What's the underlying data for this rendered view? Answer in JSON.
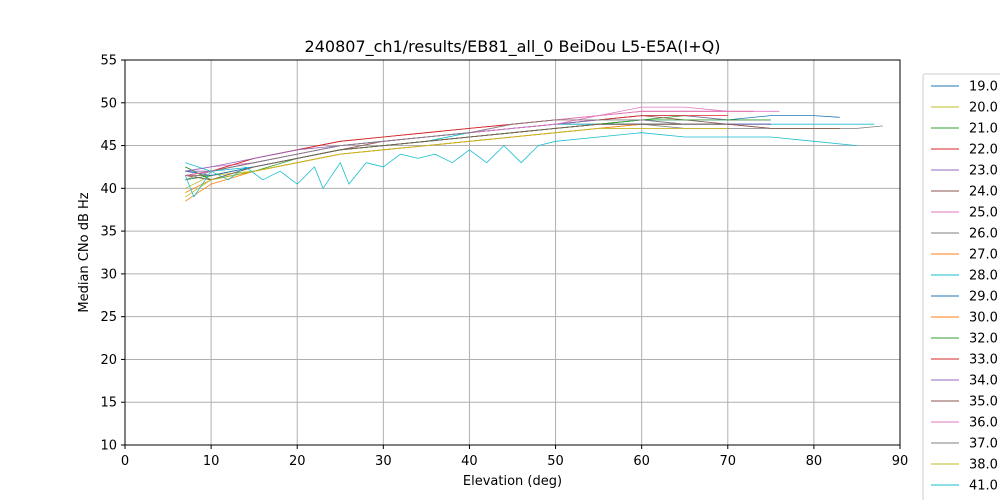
{
  "chart_data": {
    "type": "line",
    "title": "240807_ch1/results/EB81_all_0 BeiDou L5-E5A(I+Q)",
    "xlabel": "Elevation (deg)",
    "ylabel": "Median CNo dB Hz",
    "xlim": [
      0,
      90
    ],
    "ylim": [
      10,
      55
    ],
    "xticks": [
      0,
      10,
      20,
      30,
      40,
      50,
      60,
      70,
      80,
      90
    ],
    "yticks": [
      10,
      15,
      20,
      25,
      30,
      35,
      40,
      45,
      50,
      55
    ],
    "grid": true,
    "legend_position": "right, outside plot",
    "series": [
      {
        "name": "19.0",
        "color": "#1f77b4",
        "x": [
          7,
          10,
          15,
          20,
          25,
          30,
          35,
          40,
          45,
          50,
          55,
          60,
          65,
          70,
          75,
          80,
          83
        ],
        "y": [
          42.5,
          41.0,
          42.5,
          43.5,
          44.5,
          45.0,
          45.5,
          46.0,
          46.5,
          47.0,
          47.5,
          48.0,
          48.0,
          48.0,
          48.5,
          48.5,
          48.3
        ]
      },
      {
        "name": "20.0",
        "color": "#bcbd22",
        "x": [
          7,
          10,
          15,
          20,
          25,
          30,
          35,
          40,
          45,
          50,
          55,
          60,
          65,
          70,
          75
        ],
        "y": [
          40.0,
          41.5,
          42.0,
          43.0,
          44.0,
          44.5,
          45.0,
          45.5,
          46.0,
          46.5,
          47.0,
          47.5,
          47.5,
          47.5,
          47.5
        ]
      },
      {
        "name": "21.0",
        "color": "#2ca02c",
        "x": [
          7,
          10,
          15,
          20,
          25,
          30,
          35,
          40,
          45,
          50,
          55,
          60,
          65,
          70,
          75
        ],
        "y": [
          41.0,
          41.5,
          42.5,
          43.5,
          44.5,
          45.0,
          45.5,
          46.0,
          46.5,
          47.0,
          47.5,
          48.0,
          48.5,
          48.0,
          48.0
        ]
      },
      {
        "name": "22.0",
        "color": "#d62728",
        "x": [
          7,
          10,
          15,
          20,
          25,
          30,
          35,
          40,
          45,
          50,
          55,
          60,
          65,
          70,
          73
        ],
        "y": [
          41.5,
          42.0,
          43.5,
          44.5,
          45.5,
          46.0,
          46.5,
          47.0,
          47.5,
          48.0,
          48.5,
          49.0,
          49.0,
          49.0,
          49.0
        ]
      },
      {
        "name": "23.0",
        "color": "#9467bd",
        "x": [
          7,
          10,
          15,
          20,
          25,
          30,
          35,
          40,
          45,
          50,
          55,
          60,
          65,
          70,
          75
        ],
        "y": [
          42.0,
          42.0,
          43.0,
          44.0,
          45.0,
          45.5,
          46.0,
          46.5,
          47.0,
          47.5,
          48.0,
          48.5,
          48.5,
          48.0,
          48.0
        ]
      },
      {
        "name": "24.0",
        "color": "#8c564b",
        "x": [
          7,
          10,
          15,
          20,
          25,
          30,
          35,
          40,
          45,
          50,
          55,
          60,
          65,
          70,
          75,
          80,
          83
        ],
        "y": [
          41.5,
          41.5,
          42.5,
          43.5,
          44.5,
          45.5,
          46.0,
          46.5,
          47.0,
          47.5,
          48.0,
          48.5,
          48.0,
          47.5,
          47.0,
          47.0,
          47.0
        ]
      },
      {
        "name": "25.0",
        "color": "#e377c2",
        "x": [
          7,
          10,
          15,
          20,
          25,
          30,
          35,
          40,
          45,
          50,
          55,
          60,
          65,
          70,
          76
        ],
        "y": [
          42.0,
          42.5,
          43.0,
          44.0,
          45.0,
          45.5,
          46.0,
          46.5,
          47.5,
          48.0,
          48.5,
          49.5,
          49.5,
          49.0,
          49.0
        ]
      },
      {
        "name": "26.0",
        "color": "#7f7f7f",
        "x": [
          7,
          10,
          15,
          20,
          25,
          30,
          35,
          40,
          45,
          50,
          55,
          60,
          65,
          70,
          75,
          80,
          85,
          88
        ],
        "y": [
          41.5,
          42.0,
          43.0,
          44.0,
          45.0,
          45.5,
          46.0,
          46.5,
          47.0,
          47.5,
          47.5,
          47.5,
          47.0,
          47.0,
          47.0,
          47.0,
          47.0,
          47.3
        ]
      },
      {
        "name": "27.0",
        "color": "#ff7f0e",
        "x": [
          7,
          10,
          15,
          20,
          25,
          30,
          35,
          40,
          45,
          50,
          55,
          60,
          65,
          70
        ],
        "y": [
          39.5,
          41.0,
          42.0,
          43.0,
          44.0,
          44.5,
          45.0,
          45.5,
          46.0,
          46.5,
          47.0,
          47.5,
          47.5,
          47.5
        ]
      },
      {
        "name": "28.0",
        "color": "#17becf",
        "x": [
          7,
          10,
          15,
          20,
          25,
          30,
          35,
          40,
          45,
          50,
          55,
          60,
          65,
          70,
          75,
          80,
          85,
          87
        ],
        "y": [
          43.0,
          42.0,
          42.5,
          43.5,
          44.5,
          45.0,
          45.5,
          46.5,
          47.0,
          47.5,
          47.5,
          47.5,
          47.5,
          47.5,
          47.5,
          47.5,
          47.5,
          47.5
        ]
      },
      {
        "name": "29.0",
        "color": "#1f77b4",
        "x": [
          7,
          10,
          15,
          20,
          25,
          30,
          35,
          40,
          45,
          50,
          55,
          60,
          65,
          70,
          75
        ],
        "y": [
          42.0,
          41.5,
          42.5,
          43.5,
          44.5,
          45.0,
          45.5,
          46.0,
          46.5,
          47.0,
          47.5,
          47.5,
          47.5,
          47.5,
          47.5
        ]
      },
      {
        "name": "30.0",
        "color": "#ff7f0e",
        "x": [
          7,
          10,
          15,
          20,
          25,
          30,
          35,
          40,
          45,
          50,
          55,
          60,
          65,
          70
        ],
        "y": [
          38.5,
          40.5,
          42.0,
          43.0,
          44.0,
          44.5,
          45.0,
          45.5,
          46.0,
          46.5,
          47.0,
          47.0,
          47.0,
          47.0
        ]
      },
      {
        "name": "32.0",
        "color": "#2ca02c",
        "x": [
          7,
          10,
          15,
          20,
          25,
          30,
          35,
          40,
          45,
          50,
          55,
          60,
          65,
          70,
          75
        ],
        "y": [
          42.5,
          41.0,
          42.0,
          43.5,
          44.5,
          45.0,
          45.5,
          46.0,
          46.5,
          47.0,
          47.5,
          48.0,
          48.0,
          48.0,
          48.0
        ]
      },
      {
        "name": "33.0",
        "color": "#d62728",
        "x": [
          7,
          10,
          15,
          20,
          25,
          30,
          35,
          40,
          45,
          50,
          55,
          60,
          65,
          70
        ],
        "y": [
          41.5,
          42.0,
          43.5,
          44.5,
          45.5,
          46.0,
          46.5,
          47.0,
          47.5,
          48.0,
          48.0,
          48.5,
          48.5,
          48.5
        ]
      },
      {
        "name": "34.0",
        "color": "#9467bd",
        "x": [
          7,
          10,
          15,
          20,
          25,
          30,
          35,
          40,
          45,
          50,
          55,
          60,
          65,
          70,
          75
        ],
        "y": [
          42.0,
          42.5,
          43.5,
          44.5,
          45.0,
          45.5,
          46.0,
          46.5,
          47.0,
          47.5,
          48.0,
          48.0,
          47.5,
          47.5,
          47.5
        ]
      },
      {
        "name": "35.0",
        "color": "#8c564b",
        "x": [
          7,
          10,
          15,
          20,
          25,
          30,
          35,
          40,
          45,
          50,
          55,
          60,
          65,
          70,
          75,
          80,
          83
        ],
        "y": [
          41.5,
          41.0,
          42.5,
          43.5,
          44.5,
          45.0,
          45.5,
          46.0,
          46.5,
          47.0,
          47.5,
          47.5,
          47.5,
          47.5,
          47.0,
          47.0,
          47.0
        ]
      },
      {
        "name": "36.0",
        "color": "#e377c2",
        "x": [
          7,
          10,
          15,
          20,
          25,
          30,
          35,
          40,
          45,
          50,
          55,
          60,
          65,
          70
        ],
        "y": [
          41.5,
          42.0,
          43.0,
          44.0,
          45.0,
          45.5,
          46.0,
          46.5,
          47.0,
          47.5,
          48.5,
          49.0,
          49.0,
          49.0
        ]
      },
      {
        "name": "37.0",
        "color": "#7f7f7f",
        "x": [
          7,
          10,
          15,
          20,
          25,
          30,
          35,
          40,
          45,
          50,
          55,
          60,
          65,
          70
        ],
        "y": [
          41.0,
          42.0,
          43.0,
          44.0,
          45.0,
          45.5,
          46.0,
          46.5,
          47.5,
          48.0,
          48.0,
          48.0,
          47.5,
          47.5
        ]
      },
      {
        "name": "38.0",
        "color": "#bcbd22",
        "x": [
          7,
          10,
          15,
          20,
          25,
          30,
          35,
          40,
          45,
          50,
          55,
          60,
          65,
          70
        ],
        "y": [
          39.0,
          41.0,
          42.0,
          43.0,
          44.0,
          44.5,
          45.0,
          45.5,
          46.0,
          46.5,
          47.0,
          47.0,
          47.0,
          47.0
        ]
      },
      {
        "name": "41.0",
        "color": "#17becf",
        "x": [
          7,
          8,
          10,
          12,
          14,
          16,
          18,
          20,
          22,
          23,
          25,
          26,
          28,
          30,
          32,
          34,
          36,
          38,
          40,
          42,
          44,
          46,
          48,
          50,
          55,
          60,
          65,
          70,
          75,
          80,
          85
        ],
        "y": [
          41.5,
          39.0,
          42.0,
          41.0,
          42.5,
          41.0,
          42.0,
          40.5,
          42.5,
          40.0,
          43.0,
          40.5,
          43.0,
          42.5,
          44.0,
          43.5,
          44.0,
          43.0,
          44.5,
          43.0,
          45.0,
          43.0,
          45.0,
          45.5,
          46.0,
          46.5,
          46.0,
          46.0,
          46.0,
          45.5,
          45.0
        ]
      }
    ]
  }
}
